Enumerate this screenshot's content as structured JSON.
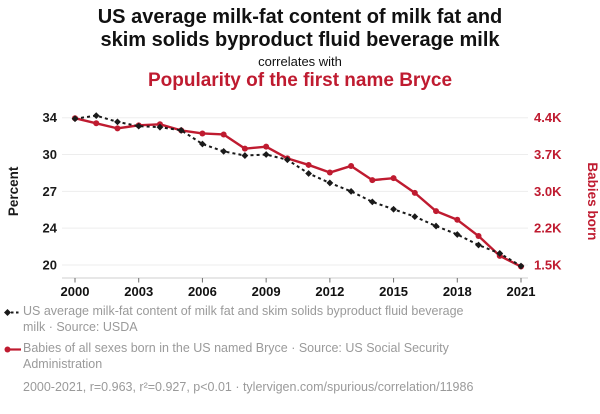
{
  "header": {
    "title": "US average milk-fat content of milk fat and\nskim solids byproduct fluid beverage milk",
    "connector": "correlates with",
    "subtitle": "Popularity of the first name Bryce",
    "accent_color": "#bf1b30",
    "text_color": "#111111"
  },
  "chart_data": {
    "type": "line",
    "x": [
      2000,
      2001,
      2002,
      2003,
      2004,
      2005,
      2006,
      2007,
      2008,
      2009,
      2010,
      2011,
      2012,
      2013,
      2014,
      2015,
      2016,
      2017,
      2018,
      2019,
      2020,
      2021
    ],
    "x_tick_labels": [
      "2000",
      "2003",
      "2006",
      "2009",
      "2012",
      "2015",
      "2018",
      "2021"
    ],
    "left_axis": {
      "title": "Percent",
      "tick_labels": [
        "34",
        "30",
        "27",
        "24",
        "20"
      ],
      "top_value": 34,
      "bottom_value": 20,
      "color": "#1a1a1a"
    },
    "right_axis": {
      "title": "Babies born",
      "tick_labels": [
        "4.4K",
        "3.7K",
        "3.0K",
        "2.2K",
        "1.5K"
      ],
      "top_value": 4400,
      "bottom_value": 1500,
      "color": "#bf1b30"
    },
    "grid": true,
    "legend_position": "bottom",
    "series": [
      {
        "name": "US average milk-fat content of milk fat and skim solids byproduct fluid beverage milk",
        "axis": "left",
        "color": "#1a1a1a",
        "marker": "diamond",
        "line_style": "dashed",
        "values": [
          33.9,
          34.2,
          33.6,
          33.2,
          33.1,
          32.8,
          31.5,
          30.8,
          30.4,
          30.5,
          30.0,
          28.7,
          27.8,
          27.0,
          26.0,
          25.3,
          24.6,
          23.7,
          22.9,
          21.9,
          21.1,
          19.9
        ]
      },
      {
        "name": "Babies of all sexes born in the US named Bryce",
        "axis": "right",
        "color": "#bf1b30",
        "marker": "circle",
        "line_style": "solid",
        "values": [
          4390,
          4290,
          4190,
          4250,
          4270,
          4150,
          4090,
          4070,
          3790,
          3830,
          3600,
          3470,
          3320,
          3450,
          3170,
          3210,
          2920,
          2560,
          2390,
          2070,
          1680,
          1470
        ]
      }
    ]
  },
  "legend": {
    "items": [
      {
        "label": "US average milk-fat content of milk fat and skim solids byproduct fluid beverage\nmilk · Source: USDA",
        "color": "#1a1a1a"
      },
      {
        "label": "Babies of all sexes born in the US named Bryce · Source: US Social Security\nAdministration",
        "color": "#bf1b30"
      }
    ]
  },
  "footer": {
    "text": "2000-2021, r=0.963, r²=0.927, p<0.01 · tylervigen.com/spurious/correlation/11986"
  }
}
